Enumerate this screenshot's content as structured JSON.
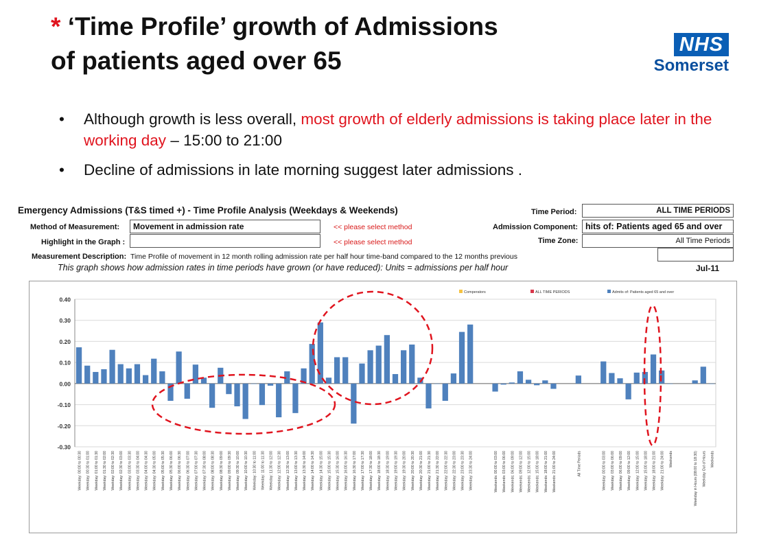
{
  "title": {
    "star": "*",
    "text_line1": "‘Time Profile’ growth of Admissions",
    "text_line2": "of patients aged over 65"
  },
  "logo": {
    "nhs": "NHS",
    "region": "Somerset",
    "colors": {
      "nhs_blue": "#0a5eb5"
    }
  },
  "bullets": {
    "b1_black1": "Although growth is less overall, ",
    "b1_red": "most growth of elderly admissions is taking place later in the working day",
    "b1_black2": " – 15:00 to 21:00",
    "b2": "Decline of admissions in late morning suggest later admissions ."
  },
  "panel": {
    "heading": "Emergency Admissions (T&S timed +) - Time Profile Analysis (Weekdays & Weekends)",
    "method_label": "Method of Measurement:",
    "method_value": "Movement in admission rate",
    "method_hint": "<< please select method",
    "highlight_label": "Highlight in the Graph :",
    "highlight_value": "",
    "highlight_hint": "<< please select method",
    "description_label": "Measurement Description:",
    "description_value": "Time Profile of movement in 12 month rolling admission rate per half hour time-band compared to the 12 months previous",
    "italic_note": "This graph shows how admission rates in time periods have grown (or have reduced): Units = admissions per half hour",
    "time_period_label": "Time Period:",
    "time_period_value": "ALL TIME PERIODS",
    "component_label": "Admission Component:",
    "component_value": "hits of: Patients aged 65 and over",
    "time_zone_label": "Time Zone:",
    "time_zone_value": "All Time Periods",
    "date": "Jul-11"
  },
  "chart_data": {
    "type": "bar",
    "legend": {
      "placement": "top-right",
      "items": [
        "Comperators",
        "ALL TIME PERIODS",
        "Admits of: Patients aged 65 and over"
      ],
      "colors": [
        "#f5c242",
        "#d9384b",
        "#4f81bd"
      ]
    },
    "ylim": [
      -0.3,
      0.4
    ],
    "yticks": [
      0.4,
      0.3,
      0.2,
      0.1,
      0.0,
      -0.1,
      -0.2,
      -0.3
    ],
    "ytick_labels": [
      "0.40",
      "0.30",
      "0.20",
      "0.10",
      "0.00",
      "-0.10",
      "-0.20",
      "-0.30"
    ],
    "bar_color": "#4f81bd",
    "annotation_color": "#e0141e",
    "grid": true,
    "categories": [
      "Weekday: 00:00 to 00:30",
      "Weekday: 00:30 to 01:00",
      "Weekday: 01:00 to 01:30",
      "Weekday: 01:30 to 02:00",
      "Weekday: 02:00 to 02:30",
      "Weekday: 02:30 to 03:00",
      "Weekday: 03:00 to 03:30",
      "Weekday: 03:30 to 04:00",
      "Weekday: 04:00 to 04:30",
      "Weekday: 04:30 to 05:00",
      "Weekday: 05:00 to 05:30",
      "Weekday: 05:30 to 06:00",
      "Weekday: 06:00 to 06:30",
      "Weekday: 06:30 to 07:00",
      "Weekday: 07:00 to 07:30",
      "Weekday: 07:30 to 08:00",
      "Weekday: 08:00 to 08:30",
      "Weekday: 08:30 to 09:00",
      "Weekday: 09:00 to 09:30",
      "Weekday: 09:30 to 10:00",
      "Weekday: 10:00 to 10:30",
      "Weekday: 10:30 to 11:00",
      "Weekday: 11:00 to 11:30",
      "Weekday: 11:30 to 12:00",
      "Weekday: 12:00 to 12:30",
      "Weekday: 12:30 to 13:00",
      "Weekday: 13:00 to 13:30",
      "Weekday: 13:30 to 14:00",
      "Weekday: 14:00 to 14:30",
      "Weekday: 14:30 to 15:00",
      "Weekday: 15:00 to 15:30",
      "Weekday: 15:30 to 16:00",
      "Weekday: 16:00 to 16:30",
      "Weekday: 16:30 to 17:00",
      "Weekday: 17:00 to 17:30",
      "Weekday: 17:30 to 18:00",
      "Weekday: 18:00 to 18:30",
      "Weekday: 18:30 to 19:00",
      "Weekday: 19:00 to 19:30",
      "Weekday: 19:30 to 20:00",
      "Weekday: 20:00 to 20:30",
      "Weekday: 20:30 to 21:00",
      "Weekday: 21:00 to 21:30",
      "Weekday: 21:30 to 22:00",
      "Weekday: 22:00 to 22:30",
      "Weekday: 22:30 to 23:00",
      "Weekday: 23:00 to 23:30",
      "Weekday: 23:30 to 24:00",
      "",
      "",
      "Weekends: 00:00 to 03:00",
      "Weekends: 03:00 to 06:00",
      "Weekends: 06:00 to 09:00",
      "Weekends: 09:00 to 12:00",
      "Weekends: 12:00 to 15:00",
      "Weekends: 15:00 to 18:00",
      "Weekends: 18:00 to 21:00",
      "Weekends: 21:00 to 24:00",
      "",
      "",
      "All Time Periods",
      "",
      "",
      "Weekday: 00:00 to 03:00",
      "Weekday: 03:00 to 06:00",
      "Weekday: 06:00 to 09:00",
      "Weekday: 09:00 to 12:00",
      "Weekday: 12:00 to 15:00",
      "Weekday: 15:00 to 18:00",
      "Weekday: 18:00 to 21:00",
      "Weekday: 21:00 to 24:00",
      "Weekends",
      "",
      "",
      "Weekday in Hours (08:00 to 18:30)",
      "Weekday Out of Hours",
      "Weekends"
    ],
    "values": [
      0.172,
      0.085,
      0.055,
      0.068,
      0.16,
      0.092,
      0.072,
      0.092,
      0.04,
      0.118,
      0.058,
      -0.082,
      0.152,
      -0.072,
      0.09,
      0.028,
      -0.115,
      0.075,
      -0.05,
      -0.108,
      -0.168,
      0.0,
      -0.102,
      -0.01,
      -0.16,
      0.058,
      -0.14,
      0.072,
      0.188,
      0.29,
      0.028,
      0.125,
      0.125,
      -0.19,
      0.095,
      0.158,
      0.18,
      0.23,
      0.045,
      0.158,
      0.185,
      0.028,
      -0.118,
      0.0,
      -0.082,
      0.048,
      0.245,
      0.28,
      null,
      null,
      -0.038,
      -0.005,
      0.005,
      0.058,
      0.018,
      -0.008,
      0.015,
      -0.025,
      null,
      null,
      0.038,
      null,
      null,
      0.105,
      0.05,
      0.025,
      -0.075,
      0.052,
      0.055,
      0.138,
      0.062,
      0.0,
      null,
      null,
      0.015,
      0.08,
      0.0
    ],
    "annotations": [
      "dashed ellipse around late-morning declines",
      "dashed ellipse around 14:00–21:00 growth",
      "dashed ellipse around weekday 15:00–21:00 bands"
    ]
  }
}
